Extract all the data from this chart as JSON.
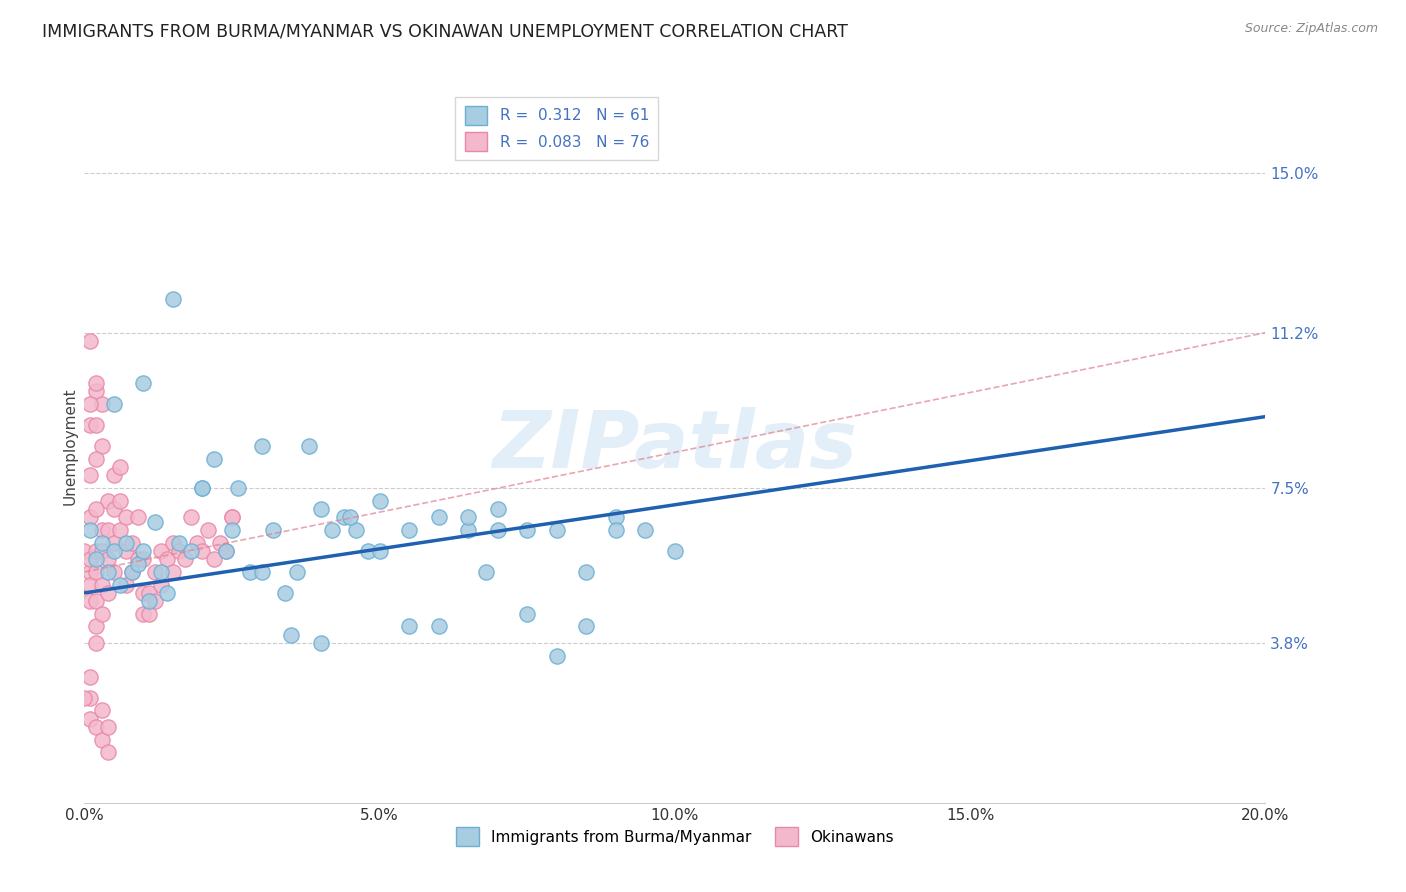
{
  "title": "IMMIGRANTS FROM BURMA/MYANMAR VS OKINAWAN UNEMPLOYMENT CORRELATION CHART",
  "source": "Source: ZipAtlas.com",
  "ylabel": "Unemployment",
  "xlim": [
    0.0,
    0.2
  ],
  "ylim": [
    0.0,
    0.17
  ],
  "xtick_labels": [
    "0.0%",
    "5.0%",
    "10.0%",
    "15.0%",
    "20.0%"
  ],
  "xtick_vals": [
    0.0,
    0.05,
    0.1,
    0.15,
    0.2
  ],
  "ytick_labels": [
    "15.0%",
    "11.2%",
    "7.5%",
    "3.8%"
  ],
  "ytick_vals": [
    0.15,
    0.112,
    0.075,
    0.038
  ],
  "blue_R": "0.312",
  "blue_N": "61",
  "pink_R": "0.083",
  "pink_N": "76",
  "blue_face_color": "#a8cce0",
  "blue_edge_color": "#6aafd4",
  "pink_face_color": "#f4b8cc",
  "pink_edge_color": "#e888a8",
  "blue_line_color": "#2060b0",
  "pink_line_color": "#e08090",
  "watermark": "ZIPatlas",
  "legend_label_blue": "Immigrants from Burma/Myanmar",
  "legend_label_pink": "Okinawans",
  "blue_trend_x": [
    0.0,
    0.2
  ],
  "blue_trend_y": [
    0.05,
    0.092
  ],
  "pink_trend_x": [
    0.0,
    0.2
  ],
  "pink_trend_y": [
    0.055,
    0.112
  ],
  "grid_color": "#cccccc",
  "background_color": "#ffffff",
  "title_fontsize": 12.5,
  "axis_label_fontsize": 11,
  "tick_fontsize": 11,
  "legend_fontsize": 11,
  "blue_scatter_x": [
    0.001,
    0.002,
    0.003,
    0.004,
    0.005,
    0.006,
    0.007,
    0.008,
    0.009,
    0.01,
    0.011,
    0.012,
    0.013,
    0.014,
    0.016,
    0.018,
    0.02,
    0.022,
    0.024,
    0.026,
    0.028,
    0.03,
    0.032,
    0.034,
    0.036,
    0.038,
    0.04,
    0.042,
    0.044,
    0.046,
    0.048,
    0.05,
    0.055,
    0.06,
    0.065,
    0.068,
    0.07,
    0.075,
    0.08,
    0.085,
    0.09,
    0.095,
    0.005,
    0.01,
    0.015,
    0.02,
    0.025,
    0.03,
    0.035,
    0.04,
    0.045,
    0.05,
    0.055,
    0.06,
    0.065,
    0.07,
    0.075,
    0.08,
    0.085,
    0.09,
    0.1
  ],
  "blue_scatter_y": [
    0.065,
    0.058,
    0.062,
    0.055,
    0.06,
    0.052,
    0.062,
    0.055,
    0.057,
    0.06,
    0.048,
    0.067,
    0.055,
    0.05,
    0.062,
    0.06,
    0.075,
    0.082,
    0.06,
    0.075,
    0.055,
    0.085,
    0.065,
    0.05,
    0.055,
    0.085,
    0.07,
    0.065,
    0.068,
    0.065,
    0.06,
    0.072,
    0.065,
    0.068,
    0.065,
    0.055,
    0.07,
    0.065,
    0.035,
    0.055,
    0.068,
    0.065,
    0.095,
    0.1,
    0.12,
    0.075,
    0.065,
    0.055,
    0.04,
    0.038,
    0.068,
    0.06,
    0.042,
    0.042,
    0.068,
    0.065,
    0.045,
    0.065,
    0.042,
    0.065,
    0.06
  ],
  "pink_scatter_x": [
    0.0,
    0.001,
    0.001,
    0.001,
    0.001,
    0.002,
    0.002,
    0.002,
    0.002,
    0.002,
    0.003,
    0.003,
    0.003,
    0.003,
    0.004,
    0.004,
    0.004,
    0.004,
    0.005,
    0.005,
    0.005,
    0.005,
    0.006,
    0.006,
    0.006,
    0.007,
    0.007,
    0.007,
    0.008,
    0.008,
    0.009,
    0.009,
    0.01,
    0.01,
    0.01,
    0.011,
    0.011,
    0.012,
    0.012,
    0.013,
    0.013,
    0.014,
    0.015,
    0.015,
    0.016,
    0.017,
    0.018,
    0.019,
    0.02,
    0.021,
    0.022,
    0.023,
    0.024,
    0.025,
    0.001,
    0.002,
    0.002,
    0.003,
    0.003,
    0.001,
    0.002,
    0.002,
    0.001,
    0.001,
    0.001,
    0.002,
    0.001,
    0.001,
    0.001,
    0.002,
    0.003,
    0.003,
    0.004,
    0.004,
    0.0,
    0.025
  ],
  "pink_scatter_y": [
    0.06,
    0.055,
    0.058,
    0.052,
    0.048,
    0.06,
    0.055,
    0.048,
    0.042,
    0.038,
    0.065,
    0.06,
    0.052,
    0.045,
    0.072,
    0.065,
    0.058,
    0.05,
    0.078,
    0.07,
    0.062,
    0.055,
    0.08,
    0.072,
    0.065,
    0.068,
    0.06,
    0.052,
    0.062,
    0.055,
    0.068,
    0.058,
    0.058,
    0.05,
    0.045,
    0.05,
    0.045,
    0.055,
    0.048,
    0.06,
    0.052,
    0.058,
    0.062,
    0.055,
    0.06,
    0.058,
    0.068,
    0.062,
    0.06,
    0.065,
    0.058,
    0.062,
    0.06,
    0.068,
    0.09,
    0.09,
    0.098,
    0.095,
    0.085,
    0.095,
    0.1,
    0.082,
    0.11,
    0.078,
    0.068,
    0.07,
    0.025,
    0.03,
    0.02,
    0.018,
    0.022,
    0.015,
    0.018,
    0.012,
    0.025,
    0.068
  ]
}
